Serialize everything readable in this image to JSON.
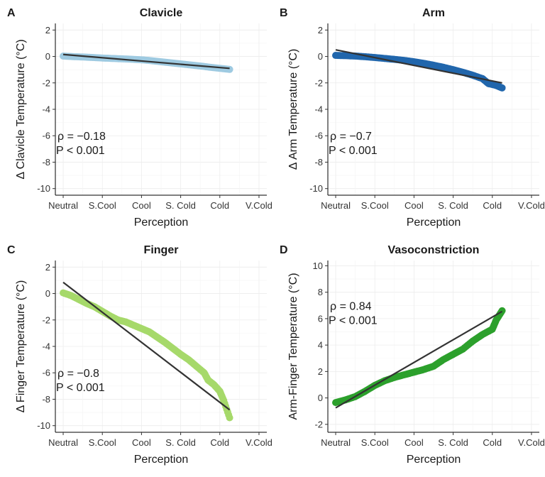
{
  "chart_data": [
    {
      "id": "A",
      "type": "scatter",
      "title": "Clavicle",
      "xlabel": "Perception",
      "ylabel": "Δ Clavicle Temperature (°C)",
      "x_categories": [
        "Neutral",
        "S.Cool",
        "Cool",
        "S. Cold",
        "Cold",
        "V.Cold"
      ],
      "x_ticks": [
        0,
        1,
        2,
        3,
        4,
        5
      ],
      "xlim": [
        -0.2,
        5.2
      ],
      "ylim": [
        -10.5,
        2.5
      ],
      "y_ticks": [
        2,
        0,
        -2,
        -4,
        -6,
        -8,
        -10
      ],
      "color": "#9ecae1",
      "points": [
        [
          0,
          0.03
        ],
        [
          0.25,
          -0.01
        ],
        [
          0.5,
          -0.04
        ],
        [
          0.75,
          -0.08
        ],
        [
          1.0,
          -0.12
        ],
        [
          1.25,
          -0.15
        ],
        [
          1.5,
          -0.18
        ],
        [
          1.75,
          -0.21
        ],
        [
          2.0,
          -0.25
        ],
        [
          2.25,
          -0.32
        ],
        [
          2.5,
          -0.4
        ],
        [
          2.75,
          -0.48
        ],
        [
          3.0,
          -0.56
        ],
        [
          3.25,
          -0.64
        ],
        [
          3.5,
          -0.72
        ],
        [
          3.75,
          -0.82
        ],
        [
          4.0,
          -0.9
        ],
        [
          4.25,
          -0.98
        ]
      ],
      "fit": [
        [
          0,
          0.15
        ],
        [
          4.25,
          -0.9
        ]
      ],
      "annotation": {
        "rho": "ρ = −0.18",
        "p": "P < 0.001",
        "x": 0,
        "y": -6
      }
    },
    {
      "id": "B",
      "type": "scatter",
      "title": "Arm",
      "xlabel": "Perception",
      "ylabel": "Δ Arm Temperature (°C)",
      "x_categories": [
        "Neutral",
        "S.Cool",
        "Cool",
        "S. Cold",
        "Cold",
        "V.Cold"
      ],
      "x_ticks": [
        0,
        1,
        2,
        3,
        4,
        5
      ],
      "xlim": [
        -0.2,
        5.2
      ],
      "ylim": [
        -10.5,
        2.5
      ],
      "y_ticks": [
        2,
        0,
        -2,
        -4,
        -6,
        -8,
        -10
      ],
      "color": "#2166ac",
      "points": [
        [
          0,
          0.08
        ],
        [
          0.25,
          0.06
        ],
        [
          0.5,
          0.03
        ],
        [
          0.75,
          -0.02
        ],
        [
          1.0,
          -0.08
        ],
        [
          1.25,
          -0.15
        ],
        [
          1.5,
          -0.22
        ],
        [
          1.75,
          -0.3
        ],
        [
          2.0,
          -0.4
        ],
        [
          2.25,
          -0.52
        ],
        [
          2.5,
          -0.66
        ],
        [
          2.75,
          -0.82
        ],
        [
          3.0,
          -1.0
        ],
        [
          3.25,
          -1.2
        ],
        [
          3.5,
          -1.42
        ],
        [
          3.75,
          -1.68
        ],
        [
          3.9,
          -2.05
        ],
        [
          4.1,
          -2.2
        ],
        [
          4.25,
          -2.38
        ]
      ],
      "fit": [
        [
          0,
          0.5
        ],
        [
          4.25,
          -2.0
        ]
      ],
      "annotation": {
        "rho": "ρ = −0.7",
        "p": "P < 0.001",
        "x": 0,
        "y": -6
      }
    },
    {
      "id": "C",
      "type": "scatter",
      "title": "Finger",
      "xlabel": "Perception",
      "ylabel": "Δ Finger Temperature (°C)",
      "x_categories": [
        "Neutral",
        "S.Cool",
        "Cool",
        "S. Cold",
        "Cold",
        "V.Cold"
      ],
      "x_ticks": [
        0,
        1,
        2,
        3,
        4,
        5
      ],
      "xlim": [
        -0.2,
        5.2
      ],
      "ylim": [
        -10.5,
        2.5
      ],
      "y_ticks": [
        2,
        0,
        -2,
        -4,
        -6,
        -8,
        -10
      ],
      "color": "#a6d96a",
      "points": [
        [
          0,
          0.05
        ],
        [
          0.2,
          -0.15
        ],
        [
          0.4,
          -0.45
        ],
        [
          0.6,
          -0.75
        ],
        [
          0.8,
          -1.0
        ],
        [
          1.0,
          -1.35
        ],
        [
          1.2,
          -1.7
        ],
        [
          1.4,
          -2.0
        ],
        [
          1.6,
          -2.15
        ],
        [
          1.8,
          -2.4
        ],
        [
          2.0,
          -2.65
        ],
        [
          2.2,
          -2.9
        ],
        [
          2.4,
          -3.3
        ],
        [
          2.6,
          -3.7
        ],
        [
          2.8,
          -4.15
        ],
        [
          3.0,
          -4.6
        ],
        [
          3.2,
          -5.0
        ],
        [
          3.4,
          -5.5
        ],
        [
          3.6,
          -6.0
        ],
        [
          3.7,
          -6.55
        ],
        [
          3.85,
          -6.9
        ],
        [
          4.0,
          -7.4
        ],
        [
          4.1,
          -8.1
        ],
        [
          4.25,
          -9.4
        ]
      ],
      "fit": [
        [
          0,
          0.85
        ],
        [
          4.25,
          -8.8
        ]
      ],
      "annotation": {
        "rho": "ρ = −0.8",
        "p": "P < 0.001",
        "x": 0,
        "y": -6
      }
    },
    {
      "id": "D",
      "type": "scatter",
      "title": "Vasoconstriction",
      "xlabel": "Perception",
      "ylabel": "Arm-Finger Temperature (°C)",
      "x_categories": [
        "Neutral",
        "S.Cool",
        "Cool",
        "S. Cold",
        "Cold",
        "V.Cold"
      ],
      "x_ticks": [
        0,
        1,
        2,
        3,
        4,
        5
      ],
      "xlim": [
        -0.2,
        5.2
      ],
      "ylim": [
        -2.6,
        10.4
      ],
      "y_ticks": [
        -2,
        0,
        2,
        4,
        6,
        8,
        10
      ],
      "color": "#2ca02c",
      "points": [
        [
          0,
          -0.35
        ],
        [
          0.25,
          -0.15
        ],
        [
          0.5,
          0.1
        ],
        [
          0.75,
          0.5
        ],
        [
          1.0,
          0.95
        ],
        [
          1.25,
          1.3
        ],
        [
          1.5,
          1.55
        ],
        [
          1.75,
          1.75
        ],
        [
          2.0,
          1.95
        ],
        [
          2.25,
          2.15
        ],
        [
          2.5,
          2.4
        ],
        [
          2.75,
          2.9
        ],
        [
          3.0,
          3.3
        ],
        [
          3.25,
          3.7
        ],
        [
          3.5,
          4.3
        ],
        [
          3.75,
          4.8
        ],
        [
          4.0,
          5.2
        ],
        [
          4.1,
          5.9
        ],
        [
          4.25,
          6.6
        ]
      ],
      "fit": [
        [
          0,
          -0.75
        ],
        [
          4.25,
          6.55
        ]
      ],
      "annotation": {
        "rho": "ρ = 0.84",
        "p": "P < 0.001",
        "x": 0,
        "y": 7
      }
    }
  ]
}
